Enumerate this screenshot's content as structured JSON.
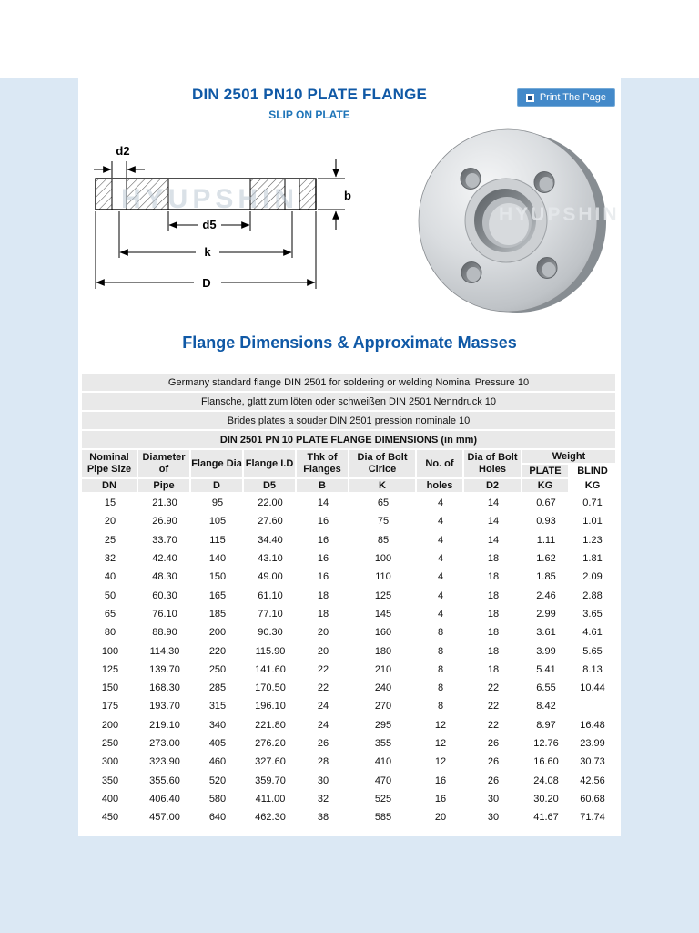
{
  "page": {
    "title": "DIN 2501 PN10 PLATE FLANGE",
    "subtitle": "SLIP ON PLATE",
    "print_button_label": "Print The Page",
    "section_heading": "Flange Dimensions & Approximate Masses",
    "watermark": "HYUPSHIN",
    "accent_color": "#1059a6",
    "button_color": "#4389c9",
    "margin_color": "#dbe8f4",
    "header_gray": "#e9e9e9"
  },
  "drawing": {
    "labels": {
      "d2": "d2",
      "b": "b",
      "d5": "d5",
      "k": "k",
      "D": "D"
    }
  },
  "table": {
    "info_rows": [
      "Germany standard flange DIN 2501 for soldering or welding Nominal Pressure 10",
      "Flansche, glatt zum löten oder schweißen DIN 2501 Nenndruck 10",
      "Brides plates a souder DIN 2501 pression nominale 10",
      "DIN 2501 PN 10 PLATE FLANGE DIMENSIONS (in mm)"
    ],
    "header": {
      "nominal": "Nominal\nPipe Size",
      "nominal_unit": "DN",
      "diameter": "Diameter\nof",
      "diameter_unit": "Pipe",
      "flange_dia": "Flange Dia",
      "flange_dia_unit": "D",
      "flange_id": "Flange I.D",
      "flange_id_unit": "D5",
      "thk": "Thk of\nFlanges",
      "thk_unit": "B",
      "bolt_circle": "Dia of Bolt\nCirlce",
      "bolt_circle_unit": "K",
      "holes": "No. of",
      "holes_unit": "holes",
      "bolt_holes": "Dia of Bolt\nHoles",
      "bolt_holes_unit": "D2",
      "weight": "Weight",
      "plate": "PLATE",
      "plate_unit": "KG",
      "blind": "BLIND",
      "blind_unit": "KG"
    },
    "rows": [
      [
        "15",
        "21.30",
        "95",
        "22.00",
        "14",
        "65",
        "4",
        "14",
        "0.67",
        "0.71"
      ],
      [
        "20",
        "26.90",
        "105",
        "27.60",
        "16",
        "75",
        "4",
        "14",
        "0.93",
        "1.01"
      ],
      [
        "25",
        "33.70",
        "115",
        "34.40",
        "16",
        "85",
        "4",
        "14",
        "1.11",
        "1.23"
      ],
      [
        "32",
        "42.40",
        "140",
        "43.10",
        "16",
        "100",
        "4",
        "18",
        "1.62",
        "1.81"
      ],
      [
        "40",
        "48.30",
        "150",
        "49.00",
        "16",
        "110",
        "4",
        "18",
        "1.85",
        "2.09"
      ],
      [
        "50",
        "60.30",
        "165",
        "61.10",
        "18",
        "125",
        "4",
        "18",
        "2.46",
        "2.88"
      ],
      [
        "65",
        "76.10",
        "185",
        "77.10",
        "18",
        "145",
        "4",
        "18",
        "2.99",
        "3.65"
      ],
      [
        "80",
        "88.90",
        "200",
        "90.30",
        "20",
        "160",
        "8",
        "18",
        "3.61",
        "4.61"
      ],
      [
        "100",
        "114.30",
        "220",
        "115.90",
        "20",
        "180",
        "8",
        "18",
        "3.99",
        "5.65"
      ],
      [
        "125",
        "139.70",
        "250",
        "141.60",
        "22",
        "210",
        "8",
        "18",
        "5.41",
        "8.13"
      ],
      [
        "150",
        "168.30",
        "285",
        "170.50",
        "22",
        "240",
        "8",
        "22",
        "6.55",
        "10.44"
      ],
      [
        "175",
        "193.70",
        "315",
        "196.10",
        "24",
        "270",
        "8",
        "22",
        "8.42",
        ""
      ],
      [
        "200",
        "219.10",
        "340",
        "221.80",
        "24",
        "295",
        "12",
        "22",
        "8.97",
        "16.48"
      ],
      [
        "250",
        "273.00",
        "405",
        "276.20",
        "26",
        "355",
        "12",
        "26",
        "12.76",
        "23.99"
      ],
      [
        "300",
        "323.90",
        "460",
        "327.60",
        "28",
        "410",
        "12",
        "26",
        "16.60",
        "30.73"
      ],
      [
        "350",
        "355.60",
        "520",
        "359.70",
        "30",
        "470",
        "16",
        "26",
        "24.08",
        "42.56"
      ],
      [
        "400",
        "406.40",
        "580",
        "411.00",
        "32",
        "525",
        "16",
        "30",
        "30.20",
        "60.68"
      ],
      [
        "450",
        "457.00",
        "640",
        "462.30",
        "38",
        "585",
        "20",
        "30",
        "41.67",
        "71.74"
      ]
    ]
  }
}
